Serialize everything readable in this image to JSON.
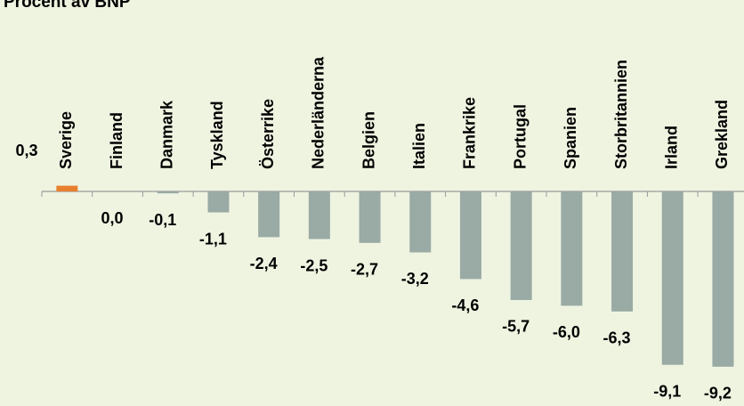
{
  "chart_data": {
    "type": "bar",
    "title": "Procent av BNP",
    "categories": [
      "Sverige",
      "Finland",
      "Danmark",
      "Tyskland",
      "Österrike",
      "Nederländerna",
      "Belgien",
      "Italien",
      "Frankrike",
      "Portugal",
      "Spanien",
      "Storbritannien",
      "Irland",
      "Grekland"
    ],
    "values": [
      0.3,
      0.0,
      -0.1,
      -1.1,
      -2.4,
      -2.5,
      -2.7,
      -3.2,
      -4.6,
      -5.7,
      -6.0,
      -6.3,
      -9.1,
      -9.2
    ],
    "value_labels": [
      "0,3",
      "0,0",
      "-0,1",
      "-1,1",
      "-2,4",
      "-2,5",
      "-2,7",
      "-3,2",
      "-4,6",
      "-5,7",
      "-6,0",
      "-6,3",
      "-9,1",
      "-9,2"
    ],
    "colors": [
      "#e8812f",
      "#9aaaa5",
      "#9aaaa5",
      "#9aaaa5",
      "#9aaaa5",
      "#9aaaa5",
      "#9aaaa5",
      "#9aaaa5",
      "#9aaaa5",
      "#9aaaa5",
      "#9aaaa5",
      "#9aaaa5",
      "#9aaaa5",
      "#9aaaa5"
    ]
  }
}
